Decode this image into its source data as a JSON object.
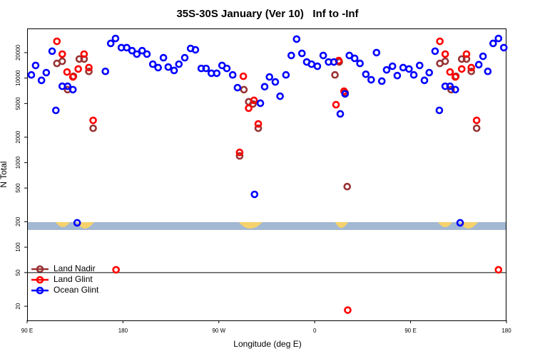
{
  "chart_data": {
    "type": "scatter",
    "title": "35S-30S January (Ver 10)   Inf to -Inf",
    "xlabel": "Longitude (deg E)",
    "ylabel": "N Total",
    "log_y": true,
    "legend": "bottom-left",
    "hline": 50,
    "xlim": [
      90,
      540
    ],
    "xticks": [
      {
        "value": 90,
        "label": "90 E"
      },
      180,
      {
        "value": 270,
        "label": "90 W"
      },
      {
        "value": 360,
        "label": "0"
      },
      {
        "value": 450,
        "label": "90 E"
      },
      {
        "value": 540,
        "label": "180"
      }
    ],
    "ylim": [
      13.6,
      38600
    ],
    "yticks": [
      20,
      50,
      100,
      200,
      500,
      1000,
      2000,
      5000,
      10000,
      20000
    ],
    "series": [
      {
        "name": "Land Nadir",
        "color": "#993333",
        "x": [
          118,
          123,
          128,
          133.5,
          139,
          143.5,
          148,
          152,
          289.5,
          293.5,
          298,
          302,
          307,
          379,
          383,
          388.5,
          390.5,
          477.5,
          482.5,
          488,
          492.5,
          498,
          502.5,
          507,
          512
        ],
        "values": [
          14900,
          15800,
          7300,
          10500,
          16800,
          16800,
          12000,
          2550,
          1200,
          7300,
          5240,
          4940,
          2550,
          10900,
          15500,
          6700,
          520,
          14900,
          15800,
          7300,
          10500,
          16800,
          16800,
          12000,
          2550
        ]
      },
      {
        "name": "Land Glint",
        "color": "#ff0000",
        "x": [
          118,
          123,
          127.5,
          133,
          138,
          143.5,
          148,
          152,
          173.5,
          289.5,
          293,
          298,
          303,
          307,
          380,
          382.5,
          387.5,
          391,
          477.5,
          482.5,
          487,
          492,
          498,
          502.5,
          507,
          512,
          532.5
        ],
        "values": [
          27200,
          19200,
          11800,
          10300,
          12800,
          19200,
          13300,
          3160,
          54,
          1320,
          10500,
          4400,
          5450,
          2870,
          4840,
          16100,
          7000,
          18,
          27200,
          19200,
          11800,
          10300,
          12800,
          19200,
          13300,
          3160,
          54
        ]
      },
      {
        "name": "Ocean Glint",
        "color": "#0000ff",
        "x": [
          94,
          98,
          103.5,
          108,
          113.5,
          117,
          123,
          128,
          133,
          137,
          163.5,
          168.5,
          173,
          178.5,
          183.5,
          188.5,
          193,
          198,
          202.5,
          208,
          213,
          218,
          222.5,
          228,
          232.5,
          238,
          243.5,
          248,
          253.5,
          258,
          263,
          268,
          273,
          277.5,
          283,
          287.5,
          303.5,
          309,
          313,
          317.5,
          323,
          327.5,
          333,
          338,
          343,
          348,
          352.5,
          357,
          362.5,
          368,
          373,
          378,
          384,
          388.5,
          392.5,
          397.5,
          402.5,
          408,
          413,
          418,
          423,
          427.5,
          433,
          437.5,
          443,
          448.5,
          453,
          458.5,
          463,
          467.5,
          473,
          477,
          482.5,
          487,
          492,
          496.5,
          514,
          518,
          522.5,
          527.5,
          532.5,
          537.5
        ],
        "values": [
          10900,
          14100,
          9400,
          11600,
          20800,
          4150,
          8000,
          8000,
          7300,
          194,
          12000,
          25700,
          29400,
          22900,
          22900,
          21100,
          19200,
          21100,
          19200,
          14600,
          13300,
          17400,
          13500,
          12300,
          14600,
          17400,
          22400,
          21600,
          13000,
          13000,
          11400,
          11400,
          14100,
          13000,
          10900,
          7700,
          421,
          5040,
          7900,
          10300,
          9000,
          6100,
          10900,
          18500,
          28900,
          19600,
          15500,
          14600,
          13800,
          18500,
          15500,
          15500,
          3770,
          6500,
          18500,
          17100,
          14900,
          11100,
          9550,
          20000,
          9200,
          12500,
          13800,
          10700,
          13300,
          12800,
          10900,
          14100,
          9400,
          11600,
          20800,
          4150,
          8000,
          8000,
          7300,
          194,
          14400,
          18100,
          12000,
          25700,
          29400,
          22900
        ]
      }
    ]
  }
}
